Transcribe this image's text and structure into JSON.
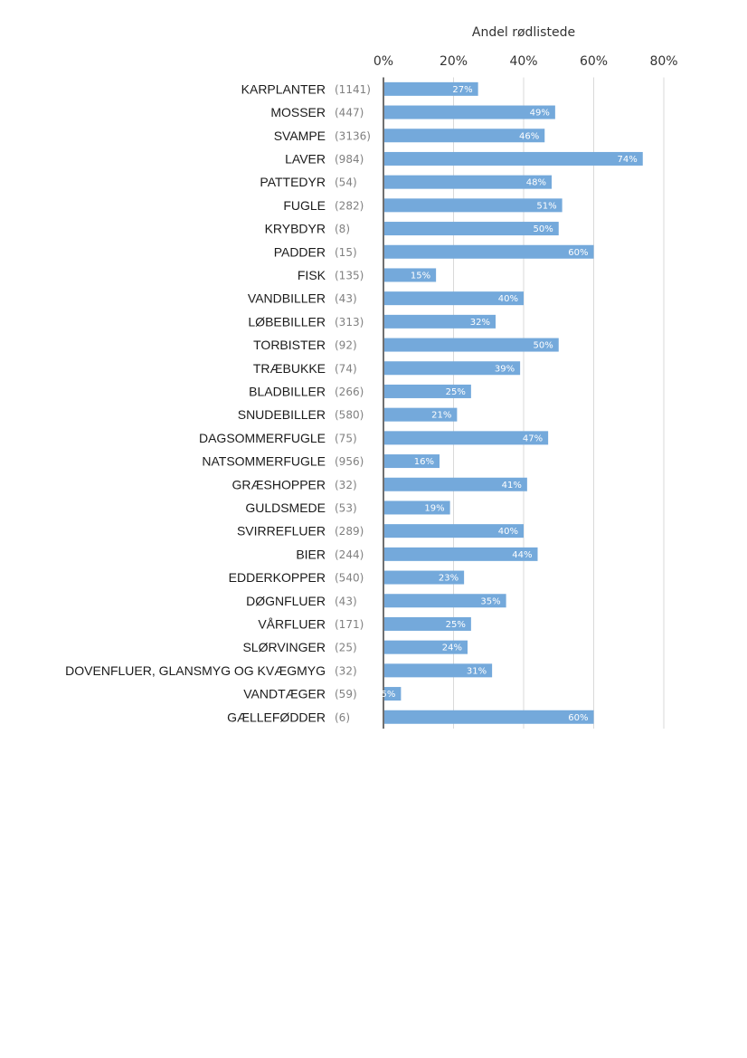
{
  "chart_data": {
    "type": "bar",
    "orientation": "horizontal",
    "title": "",
    "xlabel": "Andel rødlistede",
    "ylabel": "",
    "xlim": [
      0,
      0.8
    ],
    "xticks": [
      0,
      0.2,
      0.4,
      0.6,
      0.8
    ],
    "xtick_labels": [
      "0%",
      "20%",
      "40%",
      "60%",
      "80%"
    ],
    "x_axis_position": "top",
    "grid": "vertical",
    "legend": "none",
    "bar_color": "#74a9db",
    "categories": [
      "KARPLANTER",
      "MOSSER",
      "SVAMPE",
      "LAVER",
      "PATTEDYR",
      "FUGLE",
      "KRYBDYR",
      "PADDER",
      "FISK",
      "VANDBILLER",
      "LØBEBILLER",
      "TORBISTER",
      "TRÆBUKKE",
      "BLADBILLER",
      "SNUDEBILLER",
      "DAGSOMMERFUGLE",
      "NATSOMMERFUGLE",
      "GRÆSHOPPER",
      "GULDSMEDE",
      "SVIRREFLUER",
      "BIER",
      "EDDERKOPPER",
      "DØGNFLUER",
      "VÅRFLUER",
      "SLØRVINGER",
      "DOVENFLUER, GLANSMYG OG KVÆGMYG",
      "VANDTÆGER",
      "GÆLLEFØDDER"
    ],
    "counts": [
      "(1141)",
      "(447)",
      "(3136)",
      "(984)",
      "(54)",
      "(282)",
      "(8)",
      "(15)",
      "(135)",
      "(43)",
      "(313)",
      "(92)",
      "(74)",
      "(266)",
      "(580)",
      "(75)",
      "(956)",
      "(32)",
      "(53)",
      "(289)",
      "(244)",
      "(540)",
      "(43)",
      "(171)",
      "(25)",
      "(32)",
      "(59)",
      "(6)"
    ],
    "values": [
      0.27,
      0.49,
      0.46,
      0.74,
      0.48,
      0.51,
      0.5,
      0.6,
      0.15,
      0.4,
      0.32,
      0.5,
      0.39,
      0.25,
      0.21,
      0.47,
      0.16,
      0.41,
      0.19,
      0.4,
      0.44,
      0.23,
      0.35,
      0.25,
      0.24,
      0.31,
      0.05,
      0.6
    ],
    "value_labels": [
      "27%",
      "49%",
      "46%",
      "74%",
      "48%",
      "51%",
      "50%",
      "60%",
      "15%",
      "40%",
      "32%",
      "50%",
      "39%",
      "25%",
      "21%",
      "47%",
      "16%",
      "41%",
      "19%",
      "40%",
      "44%",
      "23%",
      "35%",
      "25%",
      "24%",
      "31%",
      "5%",
      "60%"
    ]
  }
}
